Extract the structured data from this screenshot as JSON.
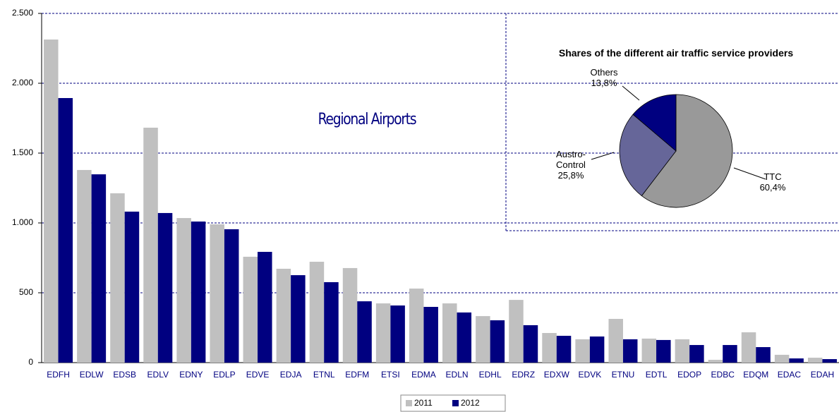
{
  "chart_data": [
    {
      "type": "bar",
      "title": "Regional Airports",
      "categories": [
        "EDFH",
        "EDLW",
        "EDSB",
        "EDLV",
        "EDNY",
        "EDLP",
        "EDVE",
        "EDJA",
        "ETNL",
        "EDFM",
        "ETSI",
        "EDMA",
        "EDLN",
        "EDHL",
        "EDRZ",
        "EDXW",
        "EDVK",
        "ETNU",
        "EDTL",
        "EDOP",
        "EDBC",
        "EDQM",
        "EDAC",
        "EDAH"
      ],
      "series": [
        {
          "name": "2011",
          "color": "#c0c0c0",
          "values": [
            2313,
            1379,
            1212,
            1682,
            1035,
            990,
            758,
            672,
            722,
            677,
            424,
            530,
            424,
            333,
            449,
            212,
            167,
            313,
            172,
            167,
            20,
            217,
            56,
            35
          ]
        },
        {
          "name": "2012",
          "color": "#000080",
          "values": [
            1894,
            1348,
            1081,
            1071,
            1010,
            955,
            793,
            626,
            576,
            439,
            409,
            399,
            359,
            303,
            268,
            192,
            187,
            167,
            162,
            126,
            126,
            111,
            30,
            25
          ]
        }
      ],
      "ylim": [
        0,
        2500
      ],
      "yticks": [
        0,
        500,
        {
          "value": 1000,
          "label": "1.000"
        },
        {
          "value": 1500,
          "label": "1.500"
        },
        {
          "value": 2000,
          "label": "2.000"
        },
        {
          "value": 2500,
          "label": "2.500"
        }
      ],
      "grid": true,
      "legend": "bottom"
    },
    {
      "type": "pie",
      "title": "Shares of the different air traffic service providers",
      "categories": [
        "TTC",
        "Austro-Control",
        "Others"
      ],
      "values": [
        60.4,
        25.8,
        13.8
      ],
      "value_labels": [
        "60,4%",
        "25,8%",
        "13,8%"
      ],
      "colors": [
        "#999999",
        "#666699",
        "#000080"
      ]
    }
  ]
}
